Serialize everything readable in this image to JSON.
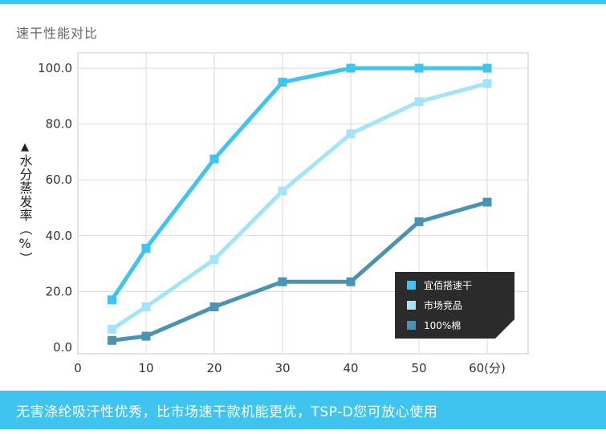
{
  "title": "速干性能对比",
  "footer": {
    "text": "无害涤纶吸汗性优秀，比市场速干款机能更优，TSP-D您可放心使用"
  },
  "colors": {
    "accent": "#3ec4ee"
  },
  "chart_data": {
    "type": "line",
    "title": "速干性能对比",
    "ylabel": "水分蒸发率（%）",
    "xlabel": "",
    "x_ticks": [
      "0",
      "10",
      "20",
      "30",
      "40",
      "50",
      "60(分)"
    ],
    "x_tick_values": [
      0,
      10,
      20,
      30,
      40,
      50,
      60
    ],
    "y_ticks": [
      "0.0",
      "20.0",
      "40.0",
      "60.0",
      "80.0",
      "100.0"
    ],
    "y_tick_values": [
      0,
      20,
      40,
      60,
      80,
      100
    ],
    "xlim": [
      0,
      66
    ],
    "ylim": [
      0,
      100
    ],
    "grid": true,
    "legend_position": "bottom-right",
    "x": [
      5,
      10,
      20,
      30,
      40,
      50,
      60
    ],
    "series": [
      {
        "name": "宜佰搭速干",
        "color": "#3ec4ee",
        "values": [
          17,
          35.5,
          67.5,
          95,
          100,
          100,
          100
        ]
      },
      {
        "name": "市场竞品",
        "color": "#a4e4fb",
        "values": [
          6.5,
          14.5,
          31.5,
          56,
          76.5,
          88,
          94.5
        ]
      },
      {
        "name": "100%棉",
        "color": "#4a93b3",
        "values": [
          2.5,
          4,
          14.5,
          23.5,
          23.5,
          45,
          52
        ]
      }
    ]
  }
}
